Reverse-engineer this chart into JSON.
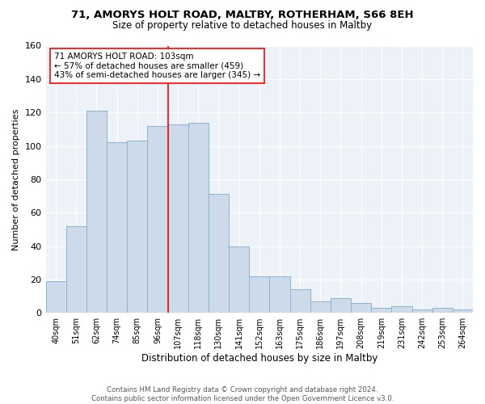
{
  "title1": "71, AMORYS HOLT ROAD, MALTBY, ROTHERHAM, S66 8EH",
  "title2": "Size of property relative to detached houses in Maltby",
  "xlabel": "Distribution of detached houses by size in Maltby",
  "ylabel": "Number of detached properties",
  "bar_color": "#ccdaea",
  "bar_edge_color": "#8ab4d4",
  "categories": [
    "40sqm",
    "51sqm",
    "62sqm",
    "74sqm",
    "85sqm",
    "96sqm",
    "107sqm",
    "118sqm",
    "130sqm",
    "141sqm",
    "152sqm",
    "163sqm",
    "175sqm",
    "186sqm",
    "197sqm",
    "208sqm",
    "219sqm",
    "231sqm",
    "242sqm",
    "253sqm",
    "264sqm"
  ],
  "values": [
    19,
    52,
    121,
    102,
    103,
    112,
    113,
    114,
    71,
    40,
    22,
    22,
    14,
    7,
    9,
    6,
    3,
    4,
    2,
    3,
    2
  ],
  "red_line_x": 6,
  "annotation_title": "71 AMORYS HOLT ROAD: 103sqm",
  "annotation_line1": "← 57% of detached houses are smaller (459)",
  "annotation_line2": "43% of semi-detached houses are larger (345) →",
  "ylim": [
    0,
    160
  ],
  "yticks": [
    0,
    20,
    40,
    60,
    80,
    100,
    120,
    140,
    160
  ],
  "footer": "Contains HM Land Registry data © Crown copyright and database right 2024.\nContains public sector information licensed under the Open Government Licence v3.0.",
  "background_color": "#edf2f9"
}
